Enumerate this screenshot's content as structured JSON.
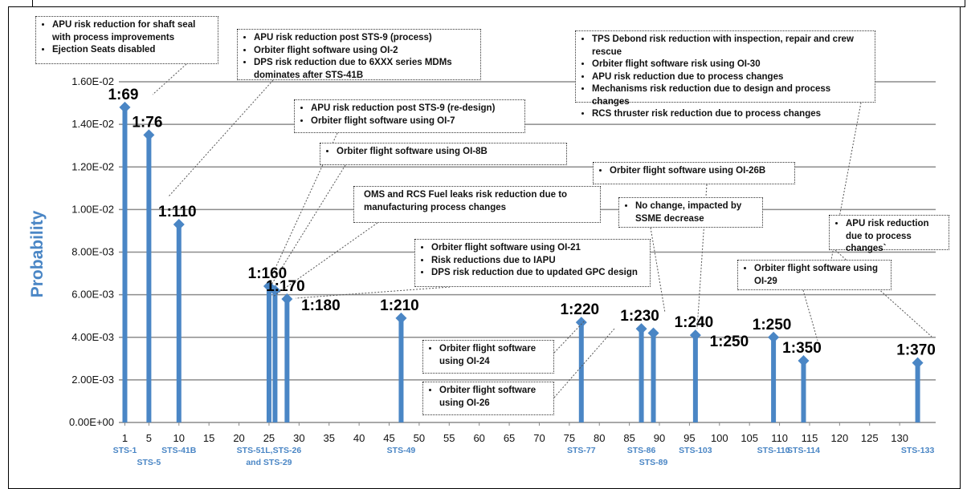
{
  "chart_data": {
    "type": "stem",
    "ylabel": "Probability",
    "xlim": [
      0,
      136
    ],
    "ylim": [
      0,
      0.016
    ],
    "ytick_labels": [
      "0.00E+00",
      "2.00E-03",
      "4.00E-03",
      "6.00E-03",
      "8.00E-03",
      "1.00E-02",
      "1.20E-02",
      "1.40E-02",
      "1.60E-02"
    ],
    "yticks": [
      0,
      0.002,
      0.004,
      0.006,
      0.008,
      0.01,
      0.012,
      0.014,
      0.016
    ],
    "xticks": [
      1,
      5,
      10,
      15,
      20,
      25,
      30,
      35,
      40,
      45,
      50,
      55,
      60,
      65,
      70,
      75,
      80,
      85,
      90,
      95,
      100,
      105,
      110,
      115,
      120,
      125,
      130
    ],
    "xtick_labels": [
      "1",
      "5",
      "10",
      "15",
      "20",
      "25",
      "30",
      "35",
      "40",
      "45",
      "50",
      "55",
      "60",
      "65",
      "70",
      "75",
      "80",
      "85",
      "90",
      "95",
      "100",
      "105",
      "110",
      "115",
      "120",
      "125",
      "130"
    ],
    "points": [
      {
        "x": 1,
        "y": 0.0148,
        "label": "1:69"
      },
      {
        "x": 5,
        "y": 0.0135,
        "label": "1:76"
      },
      {
        "x": 10,
        "y": 0.0093,
        "label": "1:110"
      },
      {
        "x": 25,
        "y": 0.0064,
        "label": "1:160"
      },
      {
        "x": 26,
        "y": 0.0062,
        "label": ""
      },
      {
        "x": 28,
        "y": 0.0058,
        "label": "1:170"
      },
      {
        "x": 47,
        "y": 0.0049,
        "label": "1:210"
      },
      {
        "x": 77,
        "y": 0.0047,
        "label": "1:220"
      },
      {
        "x": 87,
        "y": 0.0044,
        "label": "1:230"
      },
      {
        "x": 89,
        "y": 0.0042,
        "label": ""
      },
      {
        "x": 96,
        "y": 0.0041,
        "label": "1:240"
      },
      {
        "x": 109,
        "y": 0.004,
        "label": "1:250"
      },
      {
        "x": 114,
        "y": 0.0029,
        "label": "1:350"
      },
      {
        "x": 133,
        "y": 0.0028,
        "label": "1:370"
      }
    ],
    "extra_labels": [
      {
        "x": 28,
        "y": 0.0058,
        "text": "1:180"
      },
      {
        "x": 96,
        "y": 0.0041,
        "text": "1:250"
      }
    ],
    "flight_labels": [
      {
        "x": 1,
        "text": "STS-1"
      },
      {
        "x": 5,
        "text": "STS-5"
      },
      {
        "x": 10,
        "text": "STS-41B"
      },
      {
        "x": 25,
        "text": "STS-51L,STS-26"
      },
      {
        "x": 25,
        "text": "and STS-29"
      },
      {
        "x": 47,
        "text": "STS-49"
      },
      {
        "x": 77,
        "text": "STS-77"
      },
      {
        "x": 87,
        "text": "STS-86"
      },
      {
        "x": 89,
        "text": "STS-89"
      },
      {
        "x": 96,
        "text": "STS-103"
      },
      {
        "x": 109,
        "text": "STS-110"
      },
      {
        "x": 114,
        "text": "STS-114"
      },
      {
        "x": 133,
        "text": "STS-133"
      }
    ],
    "colors": {
      "stem": "#4a86c5",
      "marker": "#4a86c5",
      "grid": "#8c8c8c",
      "axis_text": "#4a86c5"
    }
  },
  "callouts": [
    {
      "id": "c1",
      "lines": [
        "APU risk reduction for shaft seal with process improvements",
        "Ejection Seats disabled"
      ]
    },
    {
      "id": "c2",
      "lines": [
        "APU risk reduction post STS-9 (process)",
        "Orbiter flight software using OI-2",
        "DPS risk reduction due to 6XXX series MDMs dominates after STS-41B"
      ]
    },
    {
      "id": "c3",
      "lines": [
        "APU risk reduction post STS-9 (re-design)",
        "Orbiter flight software using OI-7"
      ]
    },
    {
      "id": "c4",
      "lines": [
        "Orbiter flight software using OI-8B"
      ]
    },
    {
      "id": "c5",
      "lines": [
        "OMS and RCS Fuel leaks risk reduction  due to manufacturing process changes"
      ]
    },
    {
      "id": "c6",
      "lines": [
        "Orbiter flight software using OI-21",
        "Risk reductions due to IAPU",
        "DPS risk reduction due to updated GPC design"
      ]
    },
    {
      "id": "c7",
      "lines": [
        "Orbiter flight software using OI-24"
      ]
    },
    {
      "id": "c8",
      "lines": [
        "Orbiter flight software using OI-26"
      ]
    },
    {
      "id": "c9",
      "lines": [
        "TPS Debond risk reduction with inspection, repair and crew rescue",
        "Orbiter flight software risk using OI-30",
        "APU risk reduction due to process changes",
        "Mechanisms risk reduction due to design and process changes",
        "RCS thruster risk reduction due to process  changes"
      ]
    },
    {
      "id": "c10",
      "lines": [
        "Orbiter flight software using OI-26B"
      ]
    },
    {
      "id": "c11",
      "lines": [
        "No change, impacted by SSME decrease"
      ]
    },
    {
      "id": "c12",
      "lines": [
        "Orbiter flight software using OI-29"
      ]
    },
    {
      "id": "c13",
      "lines": [
        "APU risk reduction due to process  changes`"
      ]
    }
  ]
}
